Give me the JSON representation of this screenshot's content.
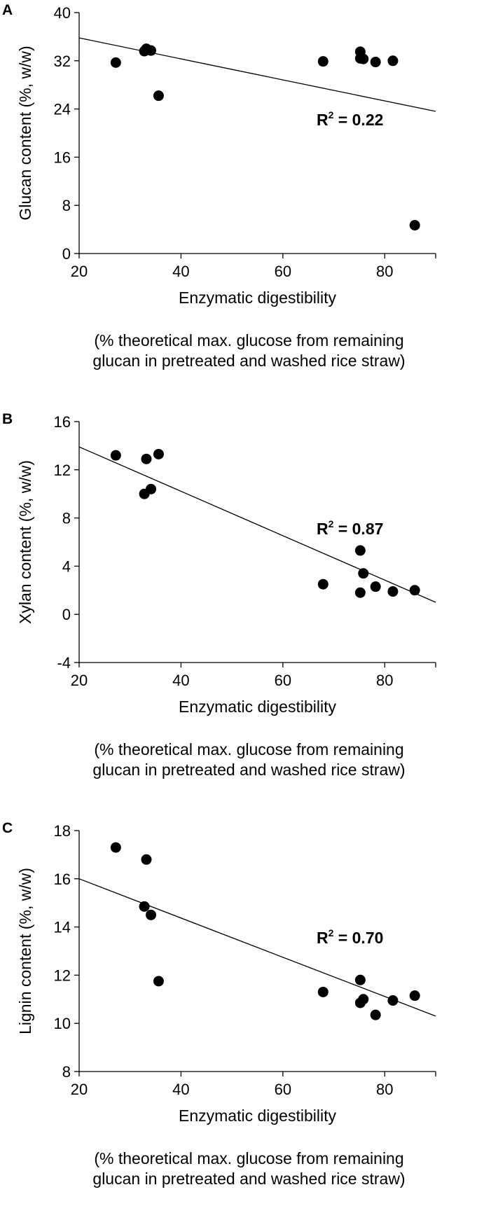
{
  "colors": {
    "marker": "#000000",
    "line": "#000000",
    "axis": "#000000",
    "background": "#ffffff"
  },
  "chart_data": [
    {
      "type": "scatter",
      "panel_label": "A",
      "xlabel": "Enzymatic digestibility",
      "caption_lines": [
        "(% theoretical max. glucose from remaining",
        "glucan in pretreated and washed rice straw)"
      ],
      "ylabel": "Glucan content (%, w/w)",
      "xlim": [
        20,
        90
      ],
      "ylim": [
        0,
        40
      ],
      "xticks": [
        20,
        40,
        60,
        80
      ],
      "yticks": [
        0,
        8,
        16,
        24,
        32,
        40
      ],
      "grid": false,
      "annotation": {
        "base": "R",
        "sup": "2",
        "rest": " = 0.22"
      },
      "trendline": {
        "x": [
          20,
          90
        ],
        "y": [
          35.8,
          23.6
        ]
      },
      "points": [
        {
          "x": 27.2,
          "y": 31.7
        },
        {
          "x": 32.8,
          "y": 33.6
        },
        {
          "x": 33.2,
          "y": 34.0
        },
        {
          "x": 34.1,
          "y": 33.7
        },
        {
          "x": 35.6,
          "y": 26.2
        },
        {
          "x": 67.9,
          "y": 31.9
        },
        {
          "x": 75.2,
          "y": 33.5
        },
        {
          "x": 75.2,
          "y": 32.4
        },
        {
          "x": 75.8,
          "y": 32.3
        },
        {
          "x": 78.2,
          "y": 31.8
        },
        {
          "x": 81.6,
          "y": 32.0
        },
        {
          "x": 85.9,
          "y": 4.7
        }
      ]
    },
    {
      "type": "scatter",
      "panel_label": "B",
      "xlabel": "Enzymatic digestibility",
      "caption_lines": [
        "(% theoretical max. glucose from remaining",
        "glucan in pretreated and washed rice straw)"
      ],
      "ylabel": "Xylan content (%, w/w)",
      "xlim": [
        20,
        90
      ],
      "ylim": [
        -4,
        16
      ],
      "xticks": [
        20,
        40,
        60,
        80
      ],
      "yticks": [
        -4,
        0,
        4,
        8,
        12,
        16
      ],
      "grid": false,
      "annotation": {
        "base": "R",
        "sup": "2",
        "rest": " = 0.87"
      },
      "trendline": {
        "x": [
          20,
          90
        ],
        "y": [
          13.9,
          1.0
        ]
      },
      "points": [
        {
          "x": 27.2,
          "y": 13.2
        },
        {
          "x": 32.8,
          "y": 10.0
        },
        {
          "x": 33.2,
          "y": 12.9
        },
        {
          "x": 34.1,
          "y": 10.4
        },
        {
          "x": 35.6,
          "y": 13.3
        },
        {
          "x": 67.9,
          "y": 2.5
        },
        {
          "x": 75.2,
          "y": 5.3
        },
        {
          "x": 75.2,
          "y": 1.8
        },
        {
          "x": 75.8,
          "y": 3.4
        },
        {
          "x": 78.2,
          "y": 2.3
        },
        {
          "x": 81.6,
          "y": 1.9
        },
        {
          "x": 85.9,
          "y": 2.0
        }
      ]
    },
    {
      "type": "scatter",
      "panel_label": "C",
      "xlabel": "Enzymatic digestibility",
      "caption_lines": [
        "(% theoretical max. glucose from remaining",
        "glucan in pretreated and washed rice straw)"
      ],
      "ylabel": "Lignin content (%, w/w)",
      "xlim": [
        20,
        90
      ],
      "ylim": [
        8,
        18
      ],
      "xticks": [
        20,
        40,
        60,
        80
      ],
      "yticks": [
        8,
        10,
        12,
        14,
        16,
        18
      ],
      "grid": false,
      "annotation": {
        "base": "R",
        "sup": "2",
        "rest": " = 0.70"
      },
      "trendline": {
        "x": [
          20,
          90
        ],
        "y": [
          16.0,
          10.3
        ]
      },
      "points": [
        {
          "x": 27.2,
          "y": 17.3
        },
        {
          "x": 32.8,
          "y": 14.85
        },
        {
          "x": 33.2,
          "y": 16.8
        },
        {
          "x": 34.1,
          "y": 14.5
        },
        {
          "x": 35.6,
          "y": 11.75
        },
        {
          "x": 67.9,
          "y": 11.3
        },
        {
          "x": 75.2,
          "y": 11.8
        },
        {
          "x": 75.2,
          "y": 10.85
        },
        {
          "x": 75.8,
          "y": 11.0
        },
        {
          "x": 78.2,
          "y": 10.35
        },
        {
          "x": 81.6,
          "y": 10.95
        },
        {
          "x": 85.9,
          "y": 11.15
        }
      ]
    }
  ]
}
